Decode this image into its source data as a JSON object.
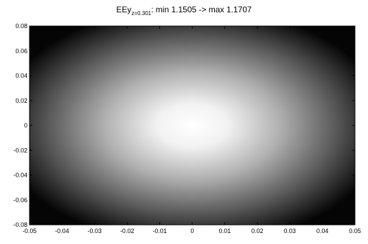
{
  "chart_data": {
    "type": "heatmap",
    "title": {
      "prefix": "EEy",
      "subscript": "z=0.301",
      "suffix": ": min 1.1505 -> max 1.1707"
    },
    "colormap": "gray",
    "value_range": [
      1.1505,
      1.1707
    ],
    "xlim": [
      -0.05,
      0.05
    ],
    "ylim": [
      -0.08,
      0.08
    ],
    "x_ticks": [
      "-0.05",
      "-0.04",
      "-0.03",
      "-0.02",
      "-0.01",
      "0",
      "0.01",
      "0.02",
      "0.03",
      "0.04",
      "0.05"
    ],
    "y_ticks": [
      "0.08",
      "0.06",
      "0.04",
      "0.02",
      "0",
      "-0.02",
      "-0.04",
      "-0.06",
      "-0.08"
    ],
    "peak": {
      "x": 0.0,
      "y": 0.0
    },
    "grid": false
  }
}
